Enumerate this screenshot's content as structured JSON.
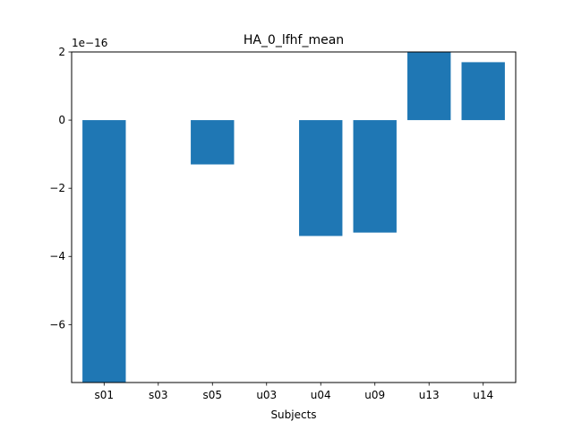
{
  "chart_data": {
    "type": "bar",
    "title": "HA_0_lfhf_mean",
    "xlabel": "Subjects",
    "ylabel": "",
    "y_offset_text": "1e−16",
    "y_scale_exponent": -16,
    "categories": [
      "s01",
      "s03",
      "s05",
      "u03",
      "u04",
      "u09",
      "u13",
      "u14"
    ],
    "values": [
      -7.7e-16,
      0,
      -1.3e-16,
      0,
      -3.4e-16,
      -3.3e-16,
      2e-16,
      1.7e-16
    ],
    "ylim": [
      -7.7e-16,
      2e-16
    ],
    "yticks": [
      2e-16,
      0,
      -2e-16,
      -4e-16,
      -6e-16
    ],
    "ytick_labels": [
      "2",
      "0",
      "−2",
      "−4",
      "−6"
    ],
    "grid": false,
    "legend": "none",
    "colors": {
      "bar": "#1f77b4",
      "axes": "#000000",
      "background": "#ffffff"
    }
  }
}
